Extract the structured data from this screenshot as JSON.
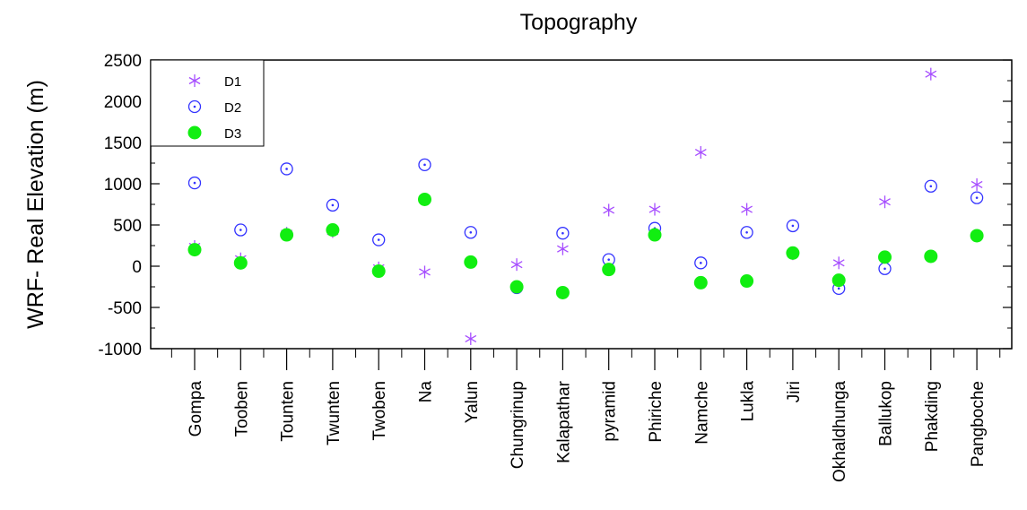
{
  "chart_data": {
    "type": "scatter",
    "title": "Topography",
    "xlabel": "",
    "ylabel": "WRF- Real Elevation (m)",
    "ylim": [
      -1000,
      2500
    ],
    "yticks": [
      -1000,
      -500,
      0,
      500,
      1000,
      1500,
      2000,
      2500
    ],
    "ytick_labels": [
      "-1000",
      "-500",
      "0",
      "500",
      "1000",
      "1500",
      "2000",
      "2500"
    ],
    "categories": [
      "Gompa",
      "Tooben",
      "Tounten",
      "Twunten",
      "Twoben",
      "Na",
      "Yalun",
      "Chungrinup",
      "Kalapathar",
      "pyramid",
      "Phiriche",
      "Namche",
      "Lukla",
      "Jiri",
      "Okhaldhunga",
      "Ballukop",
      "Phakding",
      "Pangboche"
    ],
    "grid": false,
    "legend_position": "top-left",
    "series": [
      {
        "name": "D1",
        "marker": "asterisk",
        "color": "#a64dff",
        "values": [
          240,
          90,
          400,
          420,
          -20,
          -70,
          -880,
          20,
          210,
          680,
          690,
          1380,
          690,
          150,
          40,
          780,
          2330,
          990
        ]
      },
      {
        "name": "D2",
        "marker": "circle-dot",
        "color": "#3333ff",
        "values": [
          1010,
          440,
          1180,
          740,
          320,
          1230,
          410,
          -260,
          400,
          80,
          460,
          40,
          410,
          490,
          -270,
          -30,
          970,
          830
        ]
      },
      {
        "name": "D3",
        "marker": "filled-circle",
        "color": "#11ee11",
        "values": [
          200,
          40,
          380,
          440,
          -60,
          810,
          50,
          -250,
          -320,
          -40,
          380,
          -200,
          -180,
          160,
          -170,
          110,
          120,
          370
        ]
      }
    ]
  }
}
